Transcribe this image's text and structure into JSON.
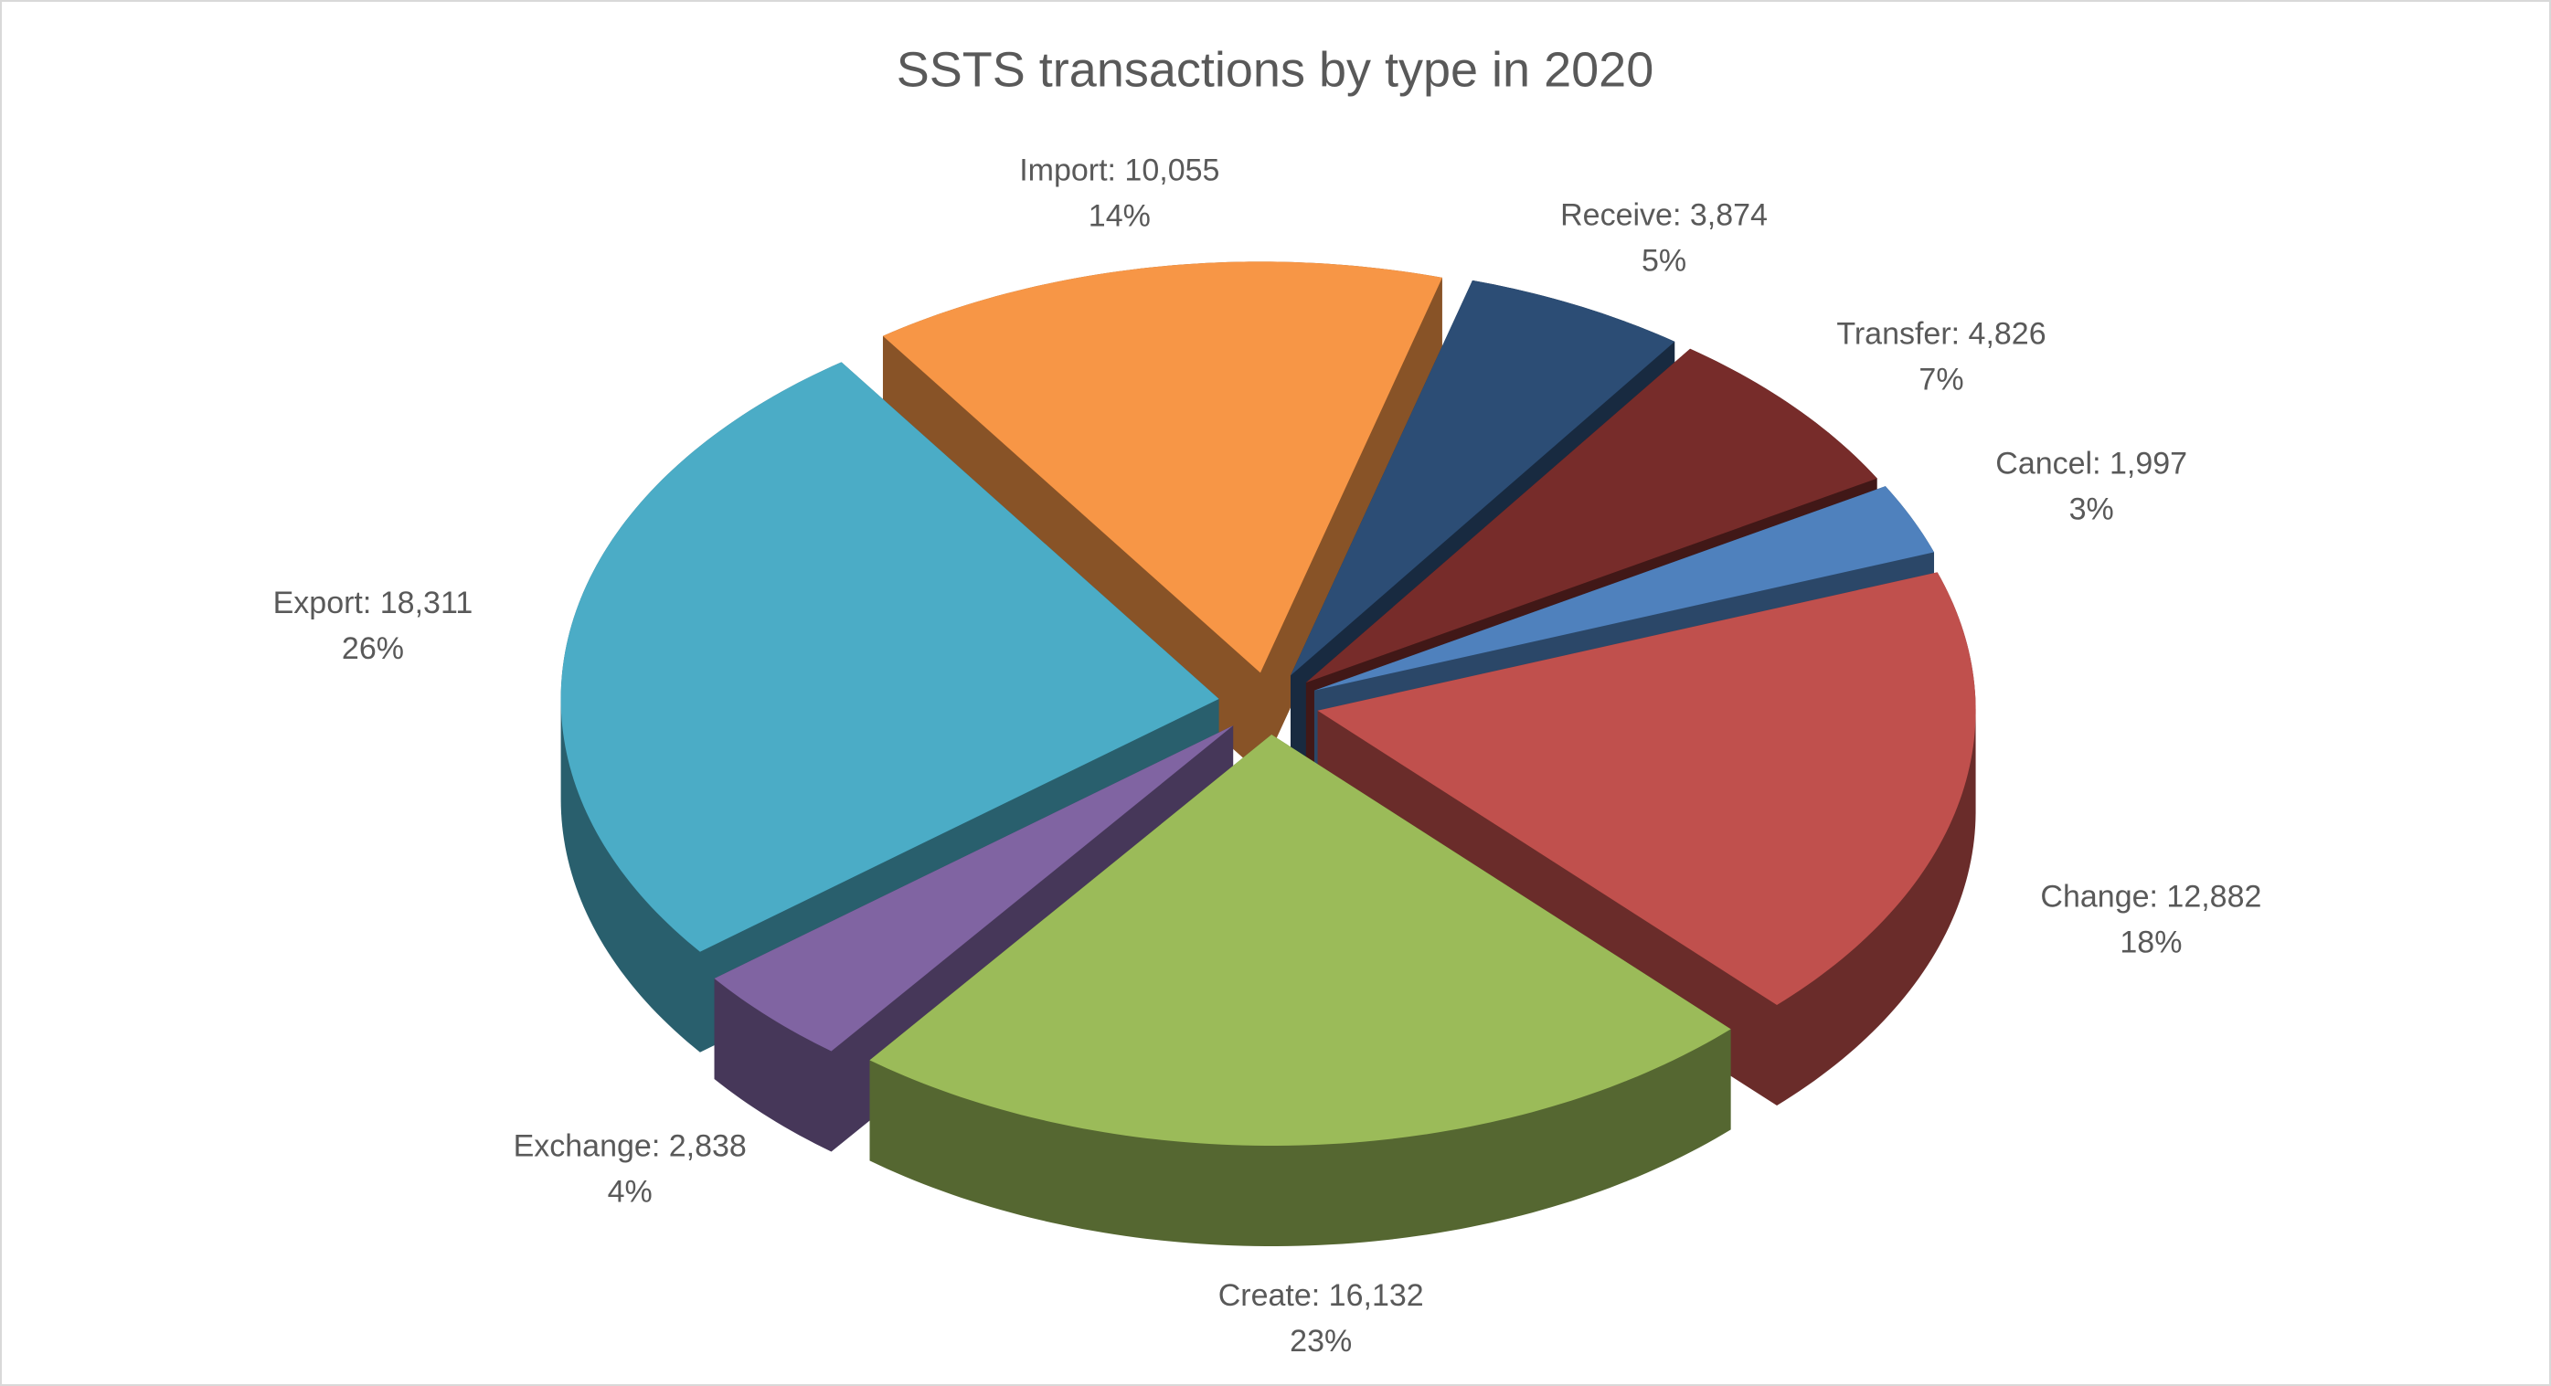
{
  "chart_data": {
    "type": "pie3d",
    "title": "SSTS transactions by type in 2020",
    "categories": [
      "Import",
      "Receive",
      "Transfer",
      "Cancel",
      "Change",
      "Create",
      "Exchange",
      "Export"
    ],
    "values": [
      10055,
      3874,
      4826,
      1997,
      12882,
      16132,
      2838,
      18311
    ],
    "value_labels": [
      "Import: 10,055",
      "Receive: 3,874",
      "Transfer: 4,826",
      "Cancel: 1,997",
      "Change: 12,882",
      "Create: 16,132",
      "Exchange: 2,838",
      "Export: 18,311"
    ],
    "percents": [
      14,
      5,
      7,
      3,
      18,
      23,
      4,
      26
    ],
    "percent_labels": [
      "14%",
      "5%",
      "7%",
      "3%",
      "18%",
      "23%",
      "4%",
      "26%"
    ],
    "colors": [
      "#F79646",
      "#2C4D75",
      "#772C2A",
      "#4F81BD",
      "#C0504D",
      "#9BBB59",
      "#8064A2",
      "#4BACC6"
    ]
  }
}
